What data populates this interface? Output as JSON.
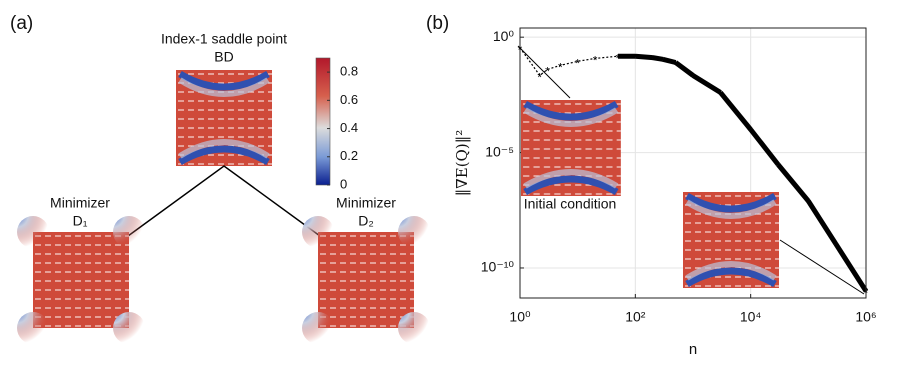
{
  "panel_a": {
    "label": "(a)",
    "saddle_title": "Index-1 saddle point",
    "saddle_name": "BD",
    "min1_title": "Minimizer",
    "min1_name": "D₁",
    "min2_title": "Minimizer",
    "min2_name": "D₂",
    "colorbar": {
      "lim": [
        0,
        0.9
      ],
      "ticks": [
        0,
        0.2,
        0.4,
        0.6,
        0.8
      ]
    }
  },
  "chart_data": {
    "type": "line",
    "panel_label": "(b)",
    "xlabel": "n",
    "ylabel": "‖∇E(Q)‖²",
    "annotation": "Initial condition",
    "color": "#000000",
    "log_x": true,
    "log_y": true,
    "grid": true,
    "x": [
      1,
      2.2,
      3,
      5,
      10,
      20,
      50,
      100,
      200,
      300,
      500,
      1000,
      3000,
      10000,
      30000,
      100000,
      300000,
      1000000
    ],
    "values": [
      0.35,
      0.022,
      0.04,
      0.06,
      0.09,
      0.12,
      0.15,
      0.15,
      0.13,
      0.11,
      0.08,
      0.022,
      0.004,
      0.0001,
      3e-06,
      8e-08,
      1.1e-09,
      1e-11
    ],
    "xlim": [
      1,
      1000000
    ],
    "ylim": [
      5e-12,
      2.5
    ],
    "xticks": [
      {
        "value": 1,
        "label": "10⁰"
      },
      {
        "value": 100,
        "label": "10²"
      },
      {
        "value": 10000,
        "label": "10⁴"
      },
      {
        "value": 1000000,
        "label": "10⁶"
      }
    ],
    "yticks": [
      {
        "value": 1,
        "label": "10⁰"
      },
      {
        "value": 1e-05,
        "label": "10⁻⁵"
      },
      {
        "value": 1e-10,
        "label": "10⁻¹⁰"
      }
    ]
  }
}
